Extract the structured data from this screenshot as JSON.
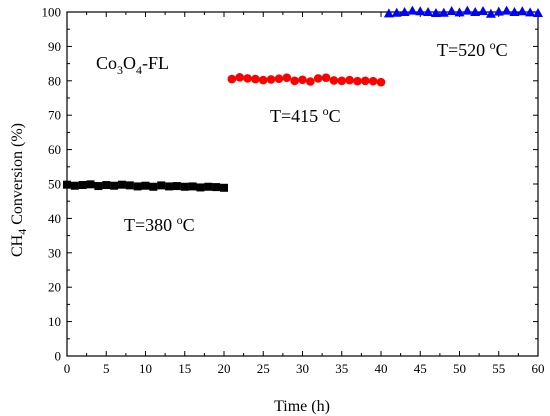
{
  "chart_data": {
    "type": "scatter",
    "xlabel": "Time (h)",
    "ylabel": "CH4 Conversion (%)",
    "xlim": [
      0,
      60
    ],
    "ylim": [
      0,
      100
    ],
    "xticks": [
      0,
      5,
      10,
      15,
      20,
      25,
      30,
      35,
      40,
      45,
      50,
      55,
      60
    ],
    "yticks": [
      0,
      10,
      20,
      30,
      40,
      50,
      60,
      70,
      80,
      90,
      100
    ],
    "grid": false,
    "sample_label": "Co3O4-FL",
    "series": [
      {
        "label": "T=380 °C",
        "marker": "square",
        "color": "#000000",
        "x": [
          0,
          1,
          2,
          3,
          4,
          5,
          6,
          7,
          8,
          9,
          10,
          11,
          12,
          13,
          14,
          15,
          16,
          17,
          18,
          19,
          20
        ],
        "y": [
          49.8,
          49.5,
          49.7,
          49.9,
          49.4,
          49.7,
          49.5,
          49.8,
          49.6,
          49.3,
          49.5,
          49.2,
          49.6,
          49.3,
          49.4,
          49.2,
          49.3,
          49.0,
          49.2,
          49.1,
          48.9
        ]
      },
      {
        "label": "T=415 °C",
        "marker": "circle",
        "color": "#ff0000",
        "x": [
          21,
          22,
          23,
          24,
          25,
          26,
          27,
          28,
          29,
          30,
          31,
          32,
          33,
          34,
          35,
          36,
          37,
          38,
          39,
          40
        ],
        "y": [
          80.5,
          81.0,
          80.7,
          80.5,
          80.2,
          80.4,
          80.6,
          80.9,
          80.0,
          80.3,
          79.8,
          80.7,
          80.9,
          80.1,
          80.0,
          80.2,
          79.9,
          80.0,
          79.9,
          79.6
        ]
      },
      {
        "label": "T=520 °C",
        "marker": "triangle",
        "color": "#0000ff",
        "x": [
          41,
          42,
          43,
          44,
          45,
          46,
          47,
          48,
          49,
          50,
          51,
          52,
          53,
          54,
          55,
          56,
          57,
          58,
          59,
          60
        ],
        "y": [
          99.6,
          99.8,
          100.0,
          100.4,
          100.2,
          100.0,
          99.7,
          99.8,
          100.3,
          99.9,
          100.4,
          100.0,
          100.3,
          99.5,
          100.1,
          100.4,
          100.0,
          100.2,
          99.9,
          99.7
        ]
      }
    ]
  },
  "text": {
    "xlabel": "Time (h)",
    "ylabel_pre": "CH",
    "ylabel_sub": "4",
    "ylabel_post": " Conversion (%)",
    "sample_co": "Co",
    "sample_sub1": "3",
    "sample_o": "O",
    "sample_sub2": "4",
    "sample_rest": "-FL",
    "t380_pre": "T=380 ",
    "t415_pre": "T=415 ",
    "t520_pre": "T=520 ",
    "deg_o": "o",
    "deg_c": "C"
  }
}
